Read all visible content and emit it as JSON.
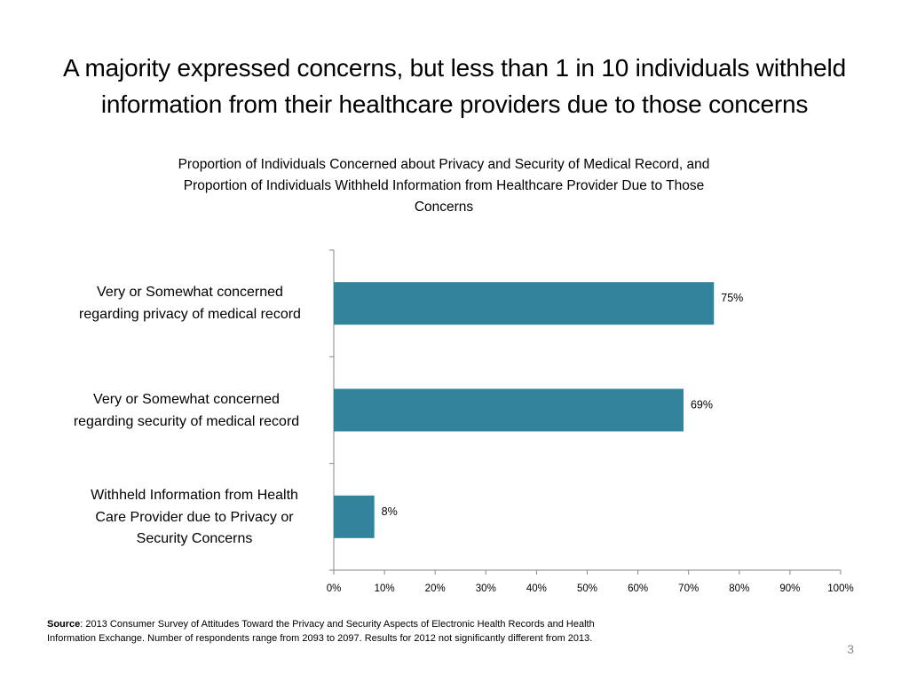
{
  "slide": {
    "title_line1": "A majority expressed concerns, but less than 1 in 10 individuals withheld",
    "title_line2": "information from their healthcare providers due to those concerns",
    "page_number": "3"
  },
  "chart_data": {
    "type": "bar",
    "orientation": "horizontal",
    "title": "Proportion of Individuals Concerned about Privacy and Security of Medical Record, and Proportion of Individuals Withheld Information from Healthcare Provider Due to Those Concerns",
    "categories": [
      "Very or Somewhat concerned regarding privacy of medical record",
      "Very or Somewhat concerned regarding security of medical record",
      "Withheld Information from Health Care Provider due to Privacy or Security Concerns"
    ],
    "values": [
      75,
      69,
      8
    ],
    "data_labels": [
      "75%",
      "69%",
      "8%"
    ],
    "xlim": [
      0,
      100
    ],
    "x_ticks": [
      "0%",
      "10%",
      "20%",
      "30%",
      "40%",
      "50%",
      "60%",
      "70%",
      "80%",
      "90%",
      "100%"
    ],
    "grid": false,
    "legend": "none",
    "bar_color": "#31849b"
  },
  "chart_text": {
    "title_line1": "Proportion of Individuals Concerned about Privacy and Security of Medical Record, and",
    "title_line2": "Proportion of Individuals Withheld Information from Healthcare Provider Due to Those",
    "title_line3": "Concerns",
    "cat1_line1": "Very or Somewhat concerned",
    "cat1_line2": "regarding privacy of medical record",
    "cat2_line1": "Very or Somewhat concerned",
    "cat2_line2": "regarding security of medical record",
    "cat3_line1": "Withheld Information from Health",
    "cat3_line2": "Care Provider due to Privacy or",
    "cat3_line3": "Security Concerns"
  },
  "source": {
    "label": "Source",
    "line1": ": 2013 Consumer Survey of Attitudes Toward the Privacy and Security Aspects of Electronic Health Records and Health",
    "line2": "Information Exchange.  Number of respondents range from 2093 to 2097. Results for 2012 not significantly different from 2013."
  }
}
